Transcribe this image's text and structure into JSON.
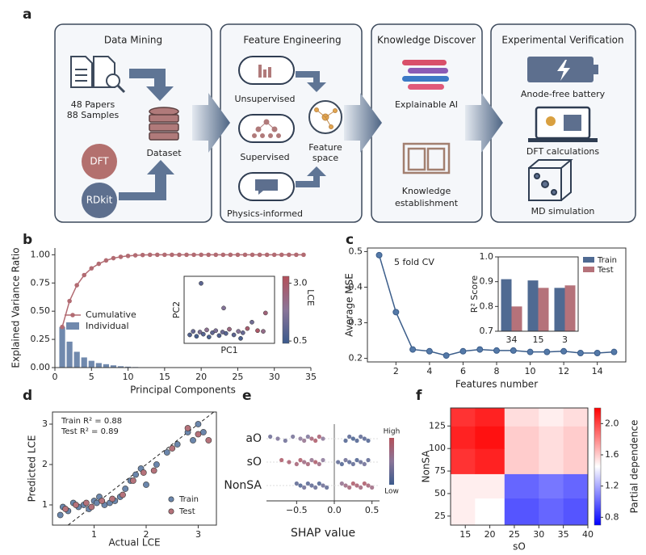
{
  "workflow": {
    "label": "a",
    "stages": [
      {
        "title": "Data Mining",
        "texts": [
          "48 Papers",
          "88 Samples",
          "DFT",
          "RDkit",
          "Dataset"
        ]
      },
      {
        "title": "Feature Engineering",
        "texts": [
          "Unsupervised",
          "Supervised",
          "Physics-informed",
          "Feature",
          "space"
        ]
      },
      {
        "title": "Knowledge Discover",
        "texts": [
          "Explainable AI",
          "Knowledge",
          "establishment"
        ]
      },
      {
        "title": "Experimental Verification",
        "texts": [
          "Anode-free battery",
          "DFT calculations",
          "MD simulation"
        ]
      }
    ]
  },
  "chart_data": [
    {
      "label": "b",
      "type": "combo",
      "xlabel": "Principal Components",
      "ylabel": "Explained Variance Ratio",
      "x": [
        1,
        2,
        3,
        4,
        5,
        6,
        7,
        8,
        9,
        10,
        11,
        12,
        13,
        14,
        15,
        16,
        17,
        18,
        19,
        20,
        21,
        22,
        23,
        24,
        25,
        26,
        27,
        28,
        29,
        30,
        31,
        32,
        33,
        34
      ],
      "series": [
        {
          "name": "Cumulative",
          "color": "#b26b72",
          "values": [
            0.36,
            0.59,
            0.73,
            0.82,
            0.88,
            0.92,
            0.95,
            0.97,
            0.982,
            0.99,
            0.995,
            0.998,
            1.0,
            1.0,
            1.0,
            1.0,
            1.0,
            1.0,
            1.0,
            1.0,
            1.0,
            1.0,
            1.0,
            1.0,
            1.0,
            1.0,
            1.0,
            1.0,
            1.0,
            1.0,
            1.0,
            1.0,
            1.0,
            1.0
          ]
        },
        {
          "name": "Individual",
          "color": "#7089ad",
          "values": [
            0.36,
            0.23,
            0.14,
            0.09,
            0.06,
            0.04,
            0.03,
            0.02,
            0.012,
            0.008,
            0.005,
            0.003,
            0.002,
            0,
            0,
            0,
            0,
            0,
            0,
            0,
            0,
            0,
            0,
            0,
            0,
            0,
            0,
            0,
            0,
            0,
            0,
            0,
            0,
            0
          ]
        }
      ],
      "xlim": [
        0,
        35
      ],
      "xticks": [
        0,
        5,
        10,
        15,
        20,
        25,
        30,
        35
      ],
      "ylim": [
        0,
        1.06
      ],
      "yticks": [
        {
          "value": 0,
          "label": "0.00"
        },
        {
          "value": 0.25,
          "label": "0.25"
        },
        {
          "value": 0.5,
          "label": "0.50"
        },
        {
          "value": 0.75,
          "label": "0.75"
        },
        {
          "value": 1,
          "label": "1.00"
        }
      ],
      "inset": {
        "type": "scatter",
        "xlabel": "PC1",
        "ylabel": "PC2",
        "colorbar_label": "LCE",
        "xlim": [
          -3,
          5
        ],
        "ylim": [
          -1.5,
          8
        ],
        "clim": [
          0.4,
          3.3
        ],
        "cticks": [
          0.5,
          {
            "value": 3,
            "label": "3.0"
          }
        ],
        "x": [
          -2.5,
          -2.2,
          -1.9,
          -1.6,
          -1.3,
          -1.0,
          -0.8,
          -0.5,
          -0.2,
          0.1,
          0.4,
          0.7,
          1.0,
          1.4,
          1.8,
          2.2,
          2.6,
          3.0,
          3.5,
          4.2,
          -1.5,
          0.5,
          2.0,
          4.0
        ],
        "y": [
          -0.3,
          0.2,
          -0.5,
          0.1,
          -0.2,
          0.4,
          -0.6,
          0.0,
          0.3,
          -0.4,
          0.1,
          -0.1,
          0.5,
          -0.3,
          0.2,
          0.0,
          0.6,
          1.5,
          0.3,
          2.8,
          7.0,
          3.5,
          -0.8,
          0.2
        ],
        "c": [
          0.8,
          1.2,
          0.6,
          1.5,
          0.9,
          2.0,
          0.7,
          1.1,
          1.6,
          0.8,
          1.3,
          0.9,
          2.4,
          1.0,
          1.8,
          1.2,
          2.8,
          1.4,
          3.0,
          2.6,
          1.0,
          1.7,
          0.7,
          2.2
        ]
      }
    },
    {
      "label": "c",
      "type": "line",
      "xlabel": "Features number",
      "ylabel": "Average MSE",
      "annotation": "5 fold CV",
      "color": "#3b5d8a",
      "x": [
        1,
        2,
        3,
        4,
        5,
        6,
        7,
        8,
        9,
        10,
        11,
        12,
        13,
        14,
        15
      ],
      "values": [
        0.49,
        0.33,
        0.225,
        0.22,
        0.208,
        0.22,
        0.225,
        0.222,
        0.222,
        0.218,
        0.218,
        0.22,
        0.215,
        0.215,
        0.218
      ],
      "xlim": [
        0.3,
        15.7
      ],
      "xticks": [
        2,
        4,
        6,
        8,
        10,
        12,
        14
      ],
      "ylim": [
        0.19,
        0.51
      ],
      "yticks": [
        0.2,
        0.3,
        0.4,
        0.5
      ],
      "inset": {
        "type": "bar",
        "ylabel": "R² Score",
        "categories": [
          "34",
          "15",
          "3"
        ],
        "series": [
          {
            "name": "Train",
            "color": "#4f6a92",
            "values": [
              0.91,
              0.905,
              0.875
            ]
          },
          {
            "name": "Test",
            "color": "#b5727a",
            "values": [
              0.8,
              0.875,
              0.885
            ]
          }
        ],
        "ylim": [
          0.7,
          1.0
        ],
        "yticks": [
          0.7,
          0.8,
          0.9,
          {
            "value": 1,
            "label": "1.0"
          }
        ]
      }
    },
    {
      "label": "d",
      "type": "scatter",
      "xlabel": "Actual LCE",
      "ylabel": "Predicted LCE",
      "annotations": [
        "Train R² = 0.88",
        "Test R² = 0.89"
      ],
      "series": [
        {
          "name": "Train",
          "color": "#6b86ab",
          "x": [
            0.35,
            0.4,
            0.5,
            0.6,
            0.7,
            0.8,
            0.9,
            1.0,
            1.05,
            1.1,
            1.2,
            1.3,
            1.4,
            1.5,
            1.6,
            1.7,
            1.8,
            1.9,
            2.0,
            2.2,
            2.4,
            2.6,
            2.8,
            2.9,
            3.0,
            3.1
          ],
          "y": [
            0.75,
            0.95,
            0.85,
            1.05,
            0.95,
            1.0,
            0.9,
            1.1,
            1.05,
            1.2,
            1.0,
            1.05,
            1.1,
            1.2,
            1.4,
            1.6,
            1.75,
            1.9,
            1.5,
            2.0,
            2.3,
            2.5,
            2.8,
            2.6,
            3.0,
            2.8
          ]
        },
        {
          "name": "Test",
          "color": "#b5727a",
          "x": [
            0.45,
            0.65,
            0.85,
            0.95,
            1.15,
            1.35,
            1.55,
            1.75,
            1.95,
            2.15,
            2.5,
            2.8,
            3.0,
            3.2
          ],
          "y": [
            0.9,
            1.0,
            1.05,
            0.95,
            1.1,
            1.15,
            1.25,
            1.6,
            1.8,
            1.85,
            2.4,
            2.9,
            2.75,
            2.6
          ]
        }
      ],
      "xlim": [
        0.2,
        3.35
      ],
      "xticks": [
        1,
        2,
        3
      ],
      "ylim": [
        0.5,
        3.3
      ],
      "yticks": [
        1,
        2,
        3
      ]
    },
    {
      "label": "e",
      "type": "beeswarm",
      "xlabel": "SHAP value",
      "colorbar_labels": [
        "High",
        "Low"
      ],
      "features": [
        {
          "name": "aO",
          "shap": [
            -0.85,
            -0.75,
            -0.65,
            -0.55,
            -0.45,
            -0.4,
            -0.35,
            -0.3,
            -0.25,
            -0.2,
            -0.15,
            0.15,
            0.2,
            0.25,
            0.3,
            0.35,
            0.4,
            0.45
          ],
          "feature_value": [
            0.3,
            0.4,
            0.3,
            0.35,
            0.5,
            0.6,
            0.4,
            0.8,
            0.9,
            0.85,
            0.5,
            0.1,
            0.15,
            0.05,
            0.1,
            0.2,
            0.15,
            0.1
          ]
        },
        {
          "name": "sO",
          "shap": [
            -0.7,
            -0.6,
            -0.5,
            -0.45,
            -0.4,
            -0.35,
            -0.3,
            -0.25,
            -0.2,
            -0.15,
            0.05,
            0.1,
            0.15,
            0.2,
            0.25,
            0.3,
            0.35,
            0.4,
            0.45
          ],
          "feature_value": [
            0.9,
            0.85,
            0.8,
            0.9,
            0.7,
            0.8,
            0.6,
            0.9,
            0.7,
            0.5,
            0.2,
            0.1,
            0.3,
            0.15,
            0.2,
            0.1,
            0.25,
            0.3,
            0.2
          ]
        },
        {
          "name": "NonSA",
          "shap": [
            -0.5,
            -0.45,
            -0.4,
            -0.35,
            -0.3,
            -0.25,
            -0.2,
            -0.15,
            -0.1,
            0.1,
            0.15,
            0.2,
            0.25,
            0.3,
            0.35,
            0.4,
            0.45,
            0.5
          ],
          "feature_value": [
            0.2,
            0.1,
            0.3,
            0.15,
            0.2,
            0.25,
            0.1,
            0.3,
            0.2,
            0.6,
            0.7,
            0.8,
            0.9,
            0.85,
            0.75,
            0.9,
            0.8,
            0.7
          ]
        }
      ],
      "xlim": [
        -0.9,
        0.6
      ],
      "xticks": [
        {
          "value": -0.5,
          "label": "−0.5"
        },
        {
          "value": 0,
          "label": "0.0"
        },
        0.5
      ]
    },
    {
      "label": "f",
      "type": "heatmap",
      "xlabel": "sO",
      "ylabel": "NonSA",
      "colorbar_label": "Partial dependence",
      "x_edges": [
        12,
        17,
        23,
        30,
        35,
        40
      ],
      "y_edges": [
        15,
        45,
        72,
        100,
        125,
        145
      ],
      "values": [
        [
          1.5,
          1.45,
          0.95,
          1.0,
          0.95
        ],
        [
          1.5,
          1.5,
          1.0,
          1.05,
          1.0
        ],
        [
          2.05,
          2.1,
          1.6,
          1.55,
          1.6
        ],
        [
          2.1,
          2.15,
          1.6,
          1.55,
          1.6
        ],
        [
          2.05,
          2.1,
          1.55,
          1.5,
          1.55
        ]
      ],
      "clim": [
        0.7,
        2.2
      ],
      "cticks": [
        0.8,
        1.2,
        1.6,
        {
          "value": 2,
          "label": "2.0"
        }
      ],
      "xlim": [
        12,
        40
      ],
      "xticks": [
        15,
        20,
        25,
        30,
        35,
        40
      ],
      "ylim": [
        15,
        145
      ],
      "yticks": [
        25,
        50,
        75,
        100,
        125
      ]
    }
  ]
}
